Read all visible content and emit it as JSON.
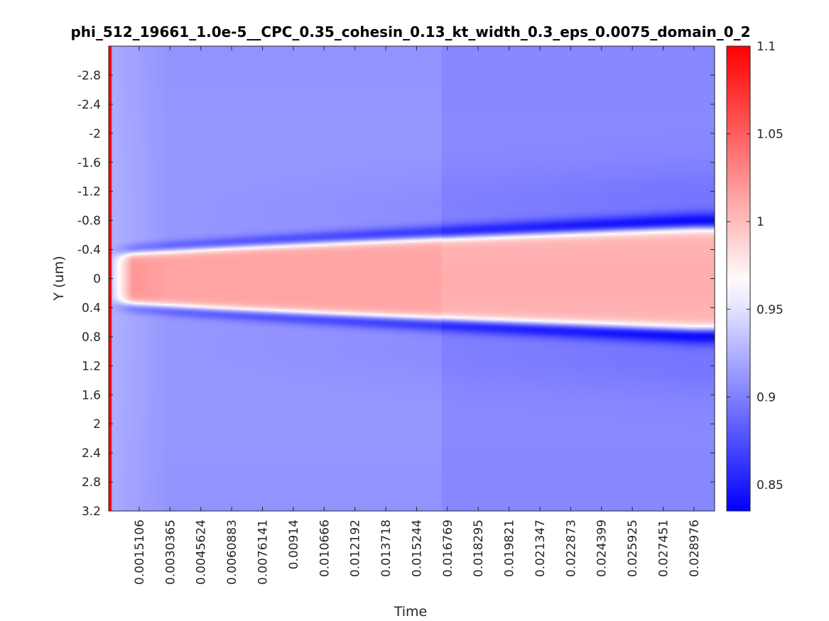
{
  "chart_data": {
    "type": "heatmap",
    "title": "phi_512_19661_1.0e-5__CPC_0.35_cohesin_0.13_kt_width_0.3_eps_0.0075_domain_0_2",
    "xlabel": "Time",
    "ylabel": "Y (um)",
    "x_tick_labels": [
      "0.0015106",
      "0.0030365",
      "0.0045624",
      "0.0060883",
      "0.0076141",
      "0.00914",
      "0.010666",
      "0.012192",
      "0.013718",
      "0.015244",
      "0.016769",
      "0.018295",
      "0.019821",
      "0.021347",
      "0.022873",
      "0.024399",
      "0.025925",
      "0.027451",
      "0.028976"
    ],
    "x_ticks": [
      0.0015106,
      0.0030365,
      0.0045624,
      0.0060883,
      0.0076141,
      0.00914,
      0.010666,
      0.012192,
      0.013718,
      0.015244,
      0.016769,
      0.018295,
      0.019821,
      0.021347,
      0.022873,
      0.024399,
      0.025925,
      0.027451,
      0.028976
    ],
    "xlim": [
      0,
      0.03
    ],
    "y_tick_labels": [
      "-2.8",
      "-2.4",
      "-2",
      "-1.6",
      "-1.2",
      "-0.8",
      "-0.4",
      "0",
      "0.4",
      "0.8",
      "1.2",
      "1.6",
      "2",
      "2.4",
      "2.8",
      "3.2"
    ],
    "y_ticks": [
      -2.8,
      -2.4,
      -2,
      -1.6,
      -1.2,
      -0.8,
      -0.4,
      0,
      0.4,
      0.8,
      1.2,
      1.6,
      2,
      2.4,
      2.8,
      3.2
    ],
    "ylim": [
      -3.2,
      3.2
    ],
    "y_direction": "reverse",
    "grid": false,
    "colorbar": {
      "ticks": [
        0.85,
        0.9,
        0.95,
        1,
        1.05,
        1.1
      ],
      "tick_labels": [
        "0.85",
        "0.9",
        "0.95",
        "1",
        "1.05",
        "1.1"
      ],
      "range": [
        0.835,
        1.1
      ],
      "colormap": "blue-white-red",
      "colors": {
        "low": "#0000ff",
        "mid": "#ffffff",
        "high": "#ff0000"
      },
      "placement": "right"
    },
    "field": {
      "background_value": 0.91,
      "center_value": 1.01,
      "trough_value": 0.845,
      "initial_value": 1.1,
      "trough_y_start": 0.38,
      "trough_y_end": 0.78
    }
  }
}
